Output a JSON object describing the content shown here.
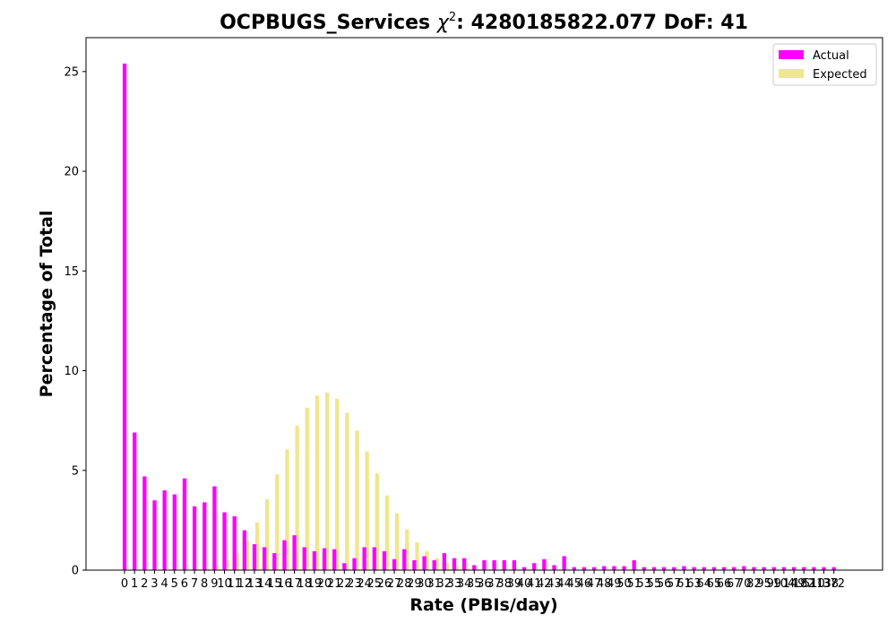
{
  "chart_data": {
    "type": "bar",
    "title_prefix": "OCPBUGS_Services ",
    "title_chi": "χ",
    "title_sup": "2",
    "title_suffix": ": 4280185822.077 DoF: 41",
    "xlabel": "Rate (PBIs/day)",
    "ylabel": "Percentage of Total",
    "ylim": [
      0,
      26.7
    ],
    "y_ticks": [
      0,
      5,
      10,
      15,
      20,
      25
    ],
    "legend_position": "top-right",
    "series": [
      {
        "name": "Actual",
        "color": "#ff00ff"
      },
      {
        "name": "Expected",
        "color": "#f0e68c"
      }
    ],
    "categories": [
      "0",
      "1",
      "2",
      "3",
      "4",
      "5",
      "6",
      "7",
      "8",
      "9",
      "10",
      "11",
      "12",
      "13",
      "14",
      "15",
      "16",
      "17",
      "18",
      "19",
      "20",
      "21",
      "22",
      "23",
      "24",
      "25",
      "26",
      "27",
      "28",
      "29",
      "30",
      "31",
      "32",
      "33",
      "34",
      "35",
      "36",
      "37",
      "38",
      "39",
      "40",
      "41",
      "42",
      "43",
      "44",
      "45",
      "46",
      "47",
      "48",
      "49",
      "50",
      "51",
      "53",
      "55",
      "56",
      "57",
      "61",
      "63",
      "64",
      "65",
      "66",
      "67",
      "70",
      "82",
      "95",
      "99",
      "104",
      "149",
      "182",
      "510",
      "1138",
      "372"
    ],
    "actual": [
      25.4,
      6.9,
      4.7,
      3.5,
      4.0,
      3.8,
      4.6,
      3.2,
      3.4,
      4.2,
      2.9,
      2.7,
      2.0,
      1.3,
      1.15,
      0.85,
      1.5,
      1.75,
      1.15,
      0.95,
      1.1,
      1.05,
      0.35,
      0.6,
      1.15,
      1.15,
      0.95,
      0.55,
      1.05,
      0.5,
      0.7,
      0.5,
      0.85,
      0.6,
      0.6,
      0.25,
      0.5,
      0.5,
      0.5,
      0.5,
      0.15,
      0.35,
      0.55,
      0.25,
      0.7,
      0.15,
      0.15,
      0.15,
      0.2,
      0.2,
      0.2,
      0.5,
      0.15,
      0.15,
      0.15,
      0.15,
      0.2,
      0.15,
      0.15,
      0.15,
      0.15,
      0.15,
      0.2,
      0.15,
      0.15,
      0.15,
      0.15,
      0.15,
      0.15,
      0.15,
      0.15,
      0.15
    ],
    "expected": [
      0,
      0,
      0,
      0,
      0,
      0.01,
      0.03,
      0.06,
      0.12,
      0.25,
      0.5,
      0.85,
      1.5,
      2.4,
      3.55,
      4.8,
      6.05,
      7.25,
      8.15,
      8.75,
      8.9,
      8.6,
      7.9,
      7.0,
      5.95,
      4.85,
      3.75,
      2.85,
      2.05,
      1.4,
      0.95,
      0.6,
      0.35,
      0.2,
      0.1,
      0.06,
      0.03,
      0.01,
      0,
      0,
      0,
      0,
      0,
      0,
      0,
      0,
      0,
      0,
      0,
      0,
      0,
      0,
      0,
      0,
      0,
      0,
      0,
      0,
      0,
      0,
      0,
      0,
      0,
      0,
      0,
      0,
      0,
      0,
      0,
      0,
      0,
      0
    ]
  }
}
